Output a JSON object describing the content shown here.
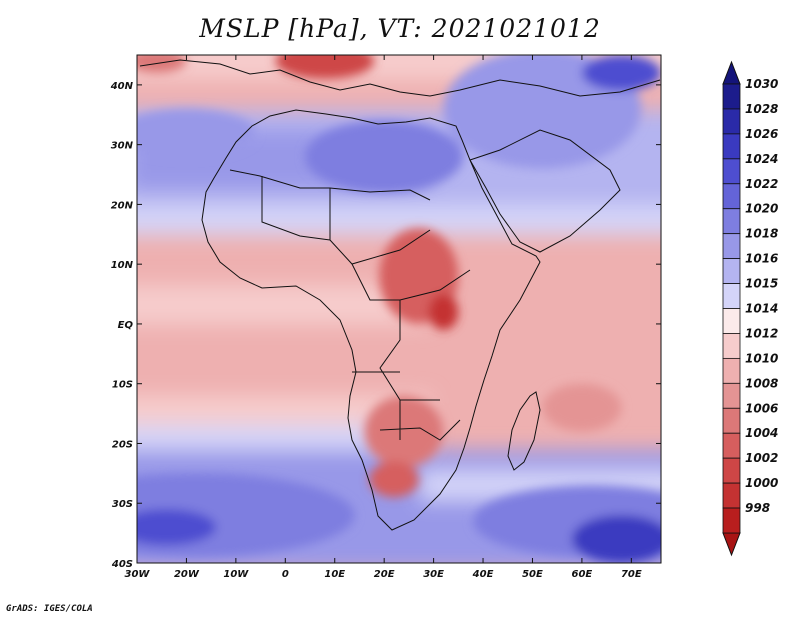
{
  "title": "MSLP [hPa], VT: 2021021012",
  "footer": "GrADS: IGES/COLA",
  "map": {
    "variable": "Mean Sea Level Pressure",
    "units": "hPa",
    "valid_time": "2021021012",
    "lon_range": [
      -30,
      76
    ],
    "lat_range": [
      -40,
      45
    ]
  },
  "axes": {
    "lon_ticks": [
      {
        "value": -30,
        "label": "30W"
      },
      {
        "value": -20,
        "label": "20W"
      },
      {
        "value": -10,
        "label": "10W"
      },
      {
        "value": 0,
        "label": "0"
      },
      {
        "value": 10,
        "label": "10E"
      },
      {
        "value": 20,
        "label": "20E"
      },
      {
        "value": 30,
        "label": "30E"
      },
      {
        "value": 40,
        "label": "40E"
      },
      {
        "value": 50,
        "label": "50E"
      },
      {
        "value": 60,
        "label": "60E"
      },
      {
        "value": 70,
        "label": "70E"
      }
    ],
    "lat_ticks": [
      {
        "value": 40,
        "label": "40N"
      },
      {
        "value": 30,
        "label": "30N"
      },
      {
        "value": 20,
        "label": "20N"
      },
      {
        "value": 10,
        "label": "10N"
      },
      {
        "value": 0,
        "label": "EQ"
      },
      {
        "value": -10,
        "label": "10S"
      },
      {
        "value": -20,
        "label": "20S"
      },
      {
        "value": -30,
        "label": "30S"
      },
      {
        "value": -40,
        "label": "40S"
      }
    ]
  },
  "colorbar": {
    "levels": [
      {
        "label": "1030",
        "color": "#1c1c8c"
      },
      {
        "label": "1028",
        "color": "#2a2aa8"
      },
      {
        "label": "1026",
        "color": "#3a3ac0"
      },
      {
        "label": "1024",
        "color": "#4e4ed0"
      },
      {
        "label": "1022",
        "color": "#6464d8"
      },
      {
        "label": "1020",
        "color": "#7e7ee0"
      },
      {
        "label": "1018",
        "color": "#9898e8"
      },
      {
        "label": "1016",
        "color": "#b4b4f0"
      },
      {
        "label": "1015",
        "color": "#d4d4f8"
      },
      {
        "label": "1014",
        "color": "#fbeaea"
      },
      {
        "label": "1012",
        "color": "#f6cccc"
      },
      {
        "label": "1010",
        "color": "#eeb0b0"
      },
      {
        "label": "1008",
        "color": "#e49494"
      },
      {
        "label": "1006",
        "color": "#dc7878"
      },
      {
        "label": "1004",
        "color": "#d65e5e"
      },
      {
        "label": "1002",
        "color": "#ce4646"
      },
      {
        "label": "1000",
        "color": "#c43232"
      },
      {
        "label": "998",
        "color": "#b81e1e"
      }
    ],
    "top_arrow_color": "#14147a",
    "bottom_arrow_color": "#a81414"
  },
  "fields": [
    {
      "name": "high-south-atlantic",
      "lon": -18,
      "lat": -32,
      "rx": 32,
      "ry": 7,
      "color": "#7e7ee0"
    },
    {
      "name": "high-south-atlantic-core",
      "lon": -24,
      "lat": -34,
      "rx": 10,
      "ry": 3,
      "color": "#4e4ed0"
    },
    {
      "name": "high-south-indian",
      "lon": 62,
      "lat": -33,
      "rx": 24,
      "ry": 6,
      "color": "#7e7ee0"
    },
    {
      "name": "high-south-indian-core",
      "lon": 68,
      "lat": -36,
      "rx": 10,
      "ry": 4,
      "color": "#3a3ac0"
    },
    {
      "name": "high-north-atlantic",
      "lon": -20,
      "lat": 32,
      "rx": 14,
      "ry": 4,
      "color": "#9898e8"
    },
    {
      "name": "high-sahara",
      "lon": 20,
      "lat": 28,
      "rx": 16,
      "ry": 6,
      "color": "#7e7ee0"
    },
    {
      "name": "high-middle-east",
      "lon": 52,
      "lat": 36,
      "rx": 20,
      "ry": 10,
      "color": "#9898e8"
    },
    {
      "name": "high-persia",
      "lon": 68,
      "lat": 42,
      "rx": 8,
      "ry": 3,
      "color": "#4e4ed0"
    },
    {
      "name": "low-mediterranean",
      "lon": 8,
      "lat": 44,
      "rx": 10,
      "ry": 3,
      "color": "#ce4646"
    },
    {
      "name": "low-iberia",
      "lon": -26,
      "lat": 44,
      "rx": 6,
      "ry": 2,
      "color": "#dc7878"
    },
    {
      "name": "low-central-africa",
      "lon": 27,
      "lat": 8,
      "rx": 8,
      "ry": 8,
      "color": "#d65e5e"
    },
    {
      "name": "low-lake-victoria",
      "lon": 32,
      "lat": 2,
      "rx": 3,
      "ry": 3,
      "color": "#c43232"
    },
    {
      "name": "low-southern-africa",
      "lon": 24,
      "lat": -18,
      "rx": 8,
      "ry": 6,
      "color": "#dc7878"
    },
    {
      "name": "low-kalahari",
      "lon": 22,
      "lat": -26,
      "rx": 5,
      "ry": 3,
      "color": "#d65e5e"
    },
    {
      "name": "low-madagascar-east",
      "lon": 60,
      "lat": -14,
      "rx": 8,
      "ry": 4,
      "color": "#e49494"
    }
  ]
}
